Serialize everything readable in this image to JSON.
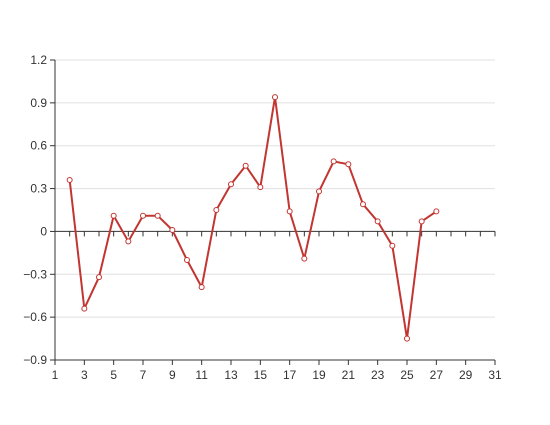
{
  "chart_data": {
    "type": "line",
    "x": [
      2,
      3,
      4,
      5,
      6,
      7,
      8,
      9,
      10,
      11,
      12,
      13,
      14,
      15,
      16,
      17,
      18,
      19,
      20,
      21,
      22,
      23,
      24,
      25,
      26,
      27
    ],
    "series": [
      {
        "values": [
          0.36,
          -0.54,
          -0.32,
          0.11,
          -0.07,
          0.11,
          0.11,
          0.01,
          -0.2,
          -0.39,
          0.15,
          0.33,
          0.46,
          0.31,
          0.94,
          0.14,
          -0.19,
          0.28,
          0.49,
          0.47,
          0.19,
          0.07,
          -0.1,
          -0.75,
          0.07,
          0.14
        ],
        "color": "#c23531"
      }
    ],
    "xlim": [
      1,
      31
    ],
    "ylim": [
      -0.9,
      1.2
    ],
    "x_ticks": [
      "1",
      "3",
      "5",
      "7",
      "9",
      "11",
      "13",
      "15",
      "17",
      "19",
      "21",
      "23",
      "25",
      "27",
      "29",
      "31"
    ],
    "y_ticks": [
      "1.2",
      "0.9",
      "0.6",
      "0.3",
      "0",
      "−0.3",
      "−0.6",
      "−0.9"
    ],
    "y_tick_values": [
      1.2,
      0.9,
      0.6,
      0.3,
      0,
      -0.3,
      -0.6,
      -0.9
    ],
    "grid": true,
    "colors": {
      "grid": "#e0e0e0",
      "axis": "#333333",
      "marker_fill": "#ffffff"
    }
  }
}
